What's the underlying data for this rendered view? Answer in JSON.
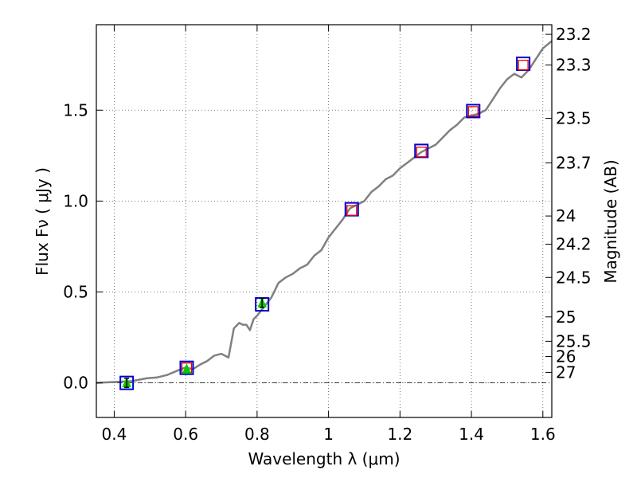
{
  "chart_data": {
    "type": "line",
    "xlabel": "Wavelength  λ (μm)",
    "ylabel": "Flux  Fν ( μJy )",
    "y2label": "Magnitude (AB)",
    "xlim": [
      0.35,
      1.625
    ],
    "ylim": [
      -0.19,
      1.97
    ],
    "x_ticks": [
      0.4,
      0.6,
      0.8,
      1.0,
      1.2,
      1.4,
      1.6
    ],
    "x_tick_labels": [
      "0.4",
      "0.6",
      "0.8",
      "1",
      "1.2",
      "1.4",
      "1.6"
    ],
    "y_ticks": [
      0.0,
      0.5,
      1.0,
      1.5
    ],
    "y_tick_labels": [
      "0.0",
      "0.5",
      "1.0",
      "1.5"
    ],
    "mag_ticks": [
      {
        "label": "23.2",
        "flux": 1.917
      },
      {
        "label": "23.3",
        "flux": 1.748
      },
      {
        "label": "23.5",
        "flux": 1.455
      },
      {
        "label": "23.7",
        "flux": 1.21
      },
      {
        "label": "24",
        "flux": 0.918
      },
      {
        "label": "24.2",
        "flux": 0.763
      },
      {
        "label": "24.5",
        "flux": 0.58
      },
      {
        "label": "25",
        "flux": 0.363
      },
      {
        "label": "25.5",
        "flux": 0.229
      },
      {
        "label": "26",
        "flux": 0.145
      },
      {
        "label": "27",
        "flux": 0.058
      }
    ],
    "grid": true,
    "zero_line": true,
    "colors": {
      "model": "#808080",
      "observed_box": "#0000cc",
      "model_box": "#ee0000",
      "detection": "#00cc00",
      "grid": "#555555",
      "error_bar": "#000000"
    },
    "model_sed": {
      "x": [
        0.35,
        0.4,
        0.45,
        0.49,
        0.52,
        0.55,
        0.58,
        0.6,
        0.62,
        0.64,
        0.66,
        0.68,
        0.7,
        0.72,
        0.735,
        0.75,
        0.76,
        0.77,
        0.78,
        0.79,
        0.8,
        0.82,
        0.84,
        0.86,
        0.88,
        0.9,
        0.92,
        0.94,
        0.96,
        0.98,
        1.0,
        1.02,
        1.04,
        1.06,
        1.08,
        1.1,
        1.12,
        1.14,
        1.16,
        1.18,
        1.2,
        1.22,
        1.24,
        1.26,
        1.28,
        1.3,
        1.32,
        1.34,
        1.36,
        1.38,
        1.4,
        1.42,
        1.44,
        1.46,
        1.48,
        1.5,
        1.52,
        1.54,
        1.56,
        1.58,
        1.6,
        1.625
      ],
      "y": [
        0.0,
        0.005,
        0.01,
        0.025,
        0.03,
        0.045,
        0.07,
        0.085,
        0.075,
        0.1,
        0.12,
        0.15,
        0.16,
        0.14,
        0.3,
        0.33,
        0.32,
        0.32,
        0.29,
        0.35,
        0.37,
        0.42,
        0.47,
        0.55,
        0.58,
        0.6,
        0.63,
        0.65,
        0.7,
        0.73,
        0.8,
        0.85,
        0.9,
        0.96,
        0.98,
        1.0,
        1.05,
        1.08,
        1.12,
        1.14,
        1.18,
        1.21,
        1.24,
        1.27,
        1.29,
        1.31,
        1.35,
        1.39,
        1.42,
        1.46,
        1.47,
        1.48,
        1.5,
        1.56,
        1.62,
        1.67,
        1.7,
        1.68,
        1.72,
        1.78,
        1.84,
        1.88
      ]
    },
    "observed_points": [
      {
        "x": 0.435,
        "y": 0.0
      },
      {
        "x": 0.603,
        "y": 0.083
      },
      {
        "x": 0.814,
        "y": 0.432
      },
      {
        "x": 1.065,
        "y": 0.955
      },
      {
        "x": 1.26,
        "y": 1.276
      },
      {
        "x": 1.405,
        "y": 1.495
      },
      {
        "x": 1.545,
        "y": 1.755
      }
    ],
    "model_points": [
      {
        "x": 0.603,
        "y": 0.083
      },
      {
        "x": 1.065,
        "y": 0.948
      },
      {
        "x": 1.26,
        "y": 1.27
      },
      {
        "x": 1.405,
        "y": 1.493
      },
      {
        "x": 1.545,
        "y": 1.748
      }
    ],
    "detections": [
      {
        "x": 0.435,
        "y": 0.0,
        "err": 0.025
      },
      {
        "x": 0.603,
        "y": 0.075,
        "err": 0.0
      },
      {
        "x": 0.814,
        "y": 0.44,
        "err": 0.025
      }
    ]
  }
}
